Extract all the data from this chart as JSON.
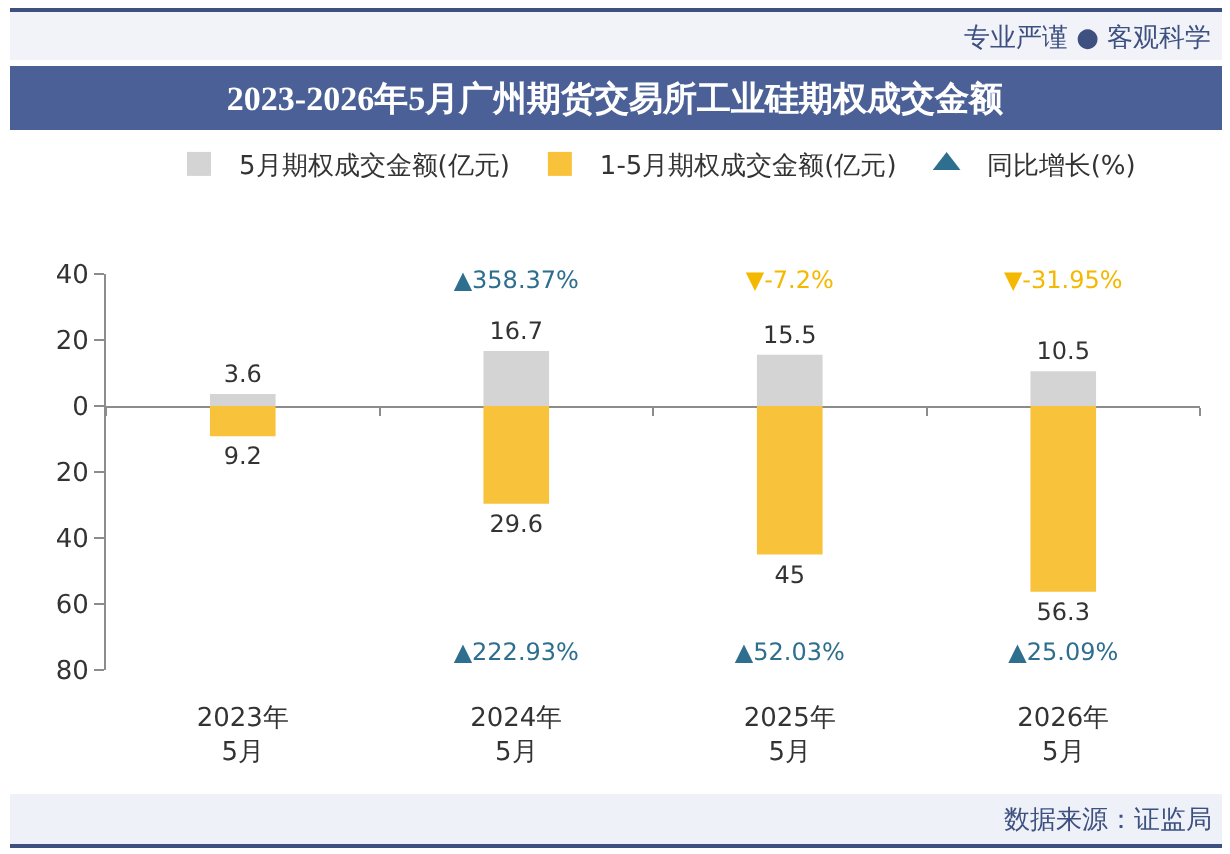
{
  "chart_data": [
    {
      "type": "bar",
      "title": "2023-2026年5月广州期货交易所工业硅期权成交金额",
      "categories": [
        null,
        null,
        null,
        null
      ],
      "series": [
        {
          "name": "5月期权成交金额(亿元)",
          "color": "#d4d4d4",
          "values": [
            3.6,
            16.7,
            15.5,
            10.5
          ]
        }
      ],
      "data_labels": true,
      "ylim": [
        0,
        40
      ],
      "yticks": [
        0,
        20,
        40
      ],
      "tick_labels": "y",
      "legend": "top",
      "annotations": [
        "专业严谨 ● 客观科学",
        "数据来源：证监局"
      ]
    },
    {
      "type": "other",
      "categories": [
        null,
        null,
        null,
        null
      ],
      "series": [
        {
          "name": "同比增长(%)",
          "colors": [
            null,
            "#2e6e8e",
            "#f5b800",
            "#f5b800"
          ],
          "values": [
            null,
            358.37,
            -7.2,
            -31.95
          ],
          "value_labels": [
            null,
            "▲358.37%",
            "▼-7.2%",
            "▼-31.95%"
          ]
        }
      ],
      "legend": "top"
    },
    {
      "type": "bar",
      "categories": [
        "2023年\n5月",
        "2024年\n5月",
        "2025年\n5月",
        "2026年\n5月"
      ],
      "series": [
        {
          "name": "1-5月期权成交金额(亿元)",
          "color": "#f8c33a",
          "values": [
            9.2,
            29.6,
            45,
            56.3
          ]
        }
      ],
      "data_labels": true,
      "ylim": [
        80,
        0
      ],
      "yticks": [
        20,
        40,
        60,
        80
      ],
      "legend": "top"
    },
    {
      "type": "other",
      "categories": [
        null,
        null,
        null,
        null
      ],
      "series": [
        {
          "colors": [
            null,
            "#2e6e8e",
            "#2e6e8e",
            "#2e6e8e"
          ],
          "values": [
            null,
            222.93,
            52.03,
            25.09
          ],
          "value_labels": [
            null,
            "▲222.93%",
            "▲52.03%",
            "▲25.09%"
          ]
        }
      ]
    }
  ]
}
